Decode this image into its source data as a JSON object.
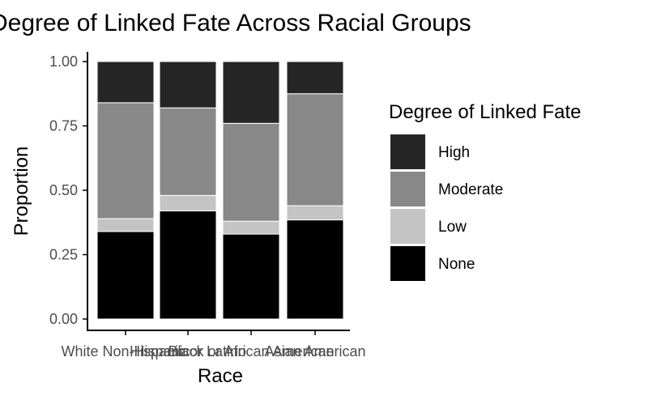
{
  "chart_data": {
    "type": "bar",
    "stacked": true,
    "title": "Degree of Linked Fate Across Racial Groups",
    "xlabel": "Race",
    "ylabel": "Proportion",
    "ylim": [
      0,
      1
    ],
    "yticks": [
      "0.00",
      "0.25",
      "0.50",
      "0.75",
      "1.00"
    ],
    "categories": [
      "White Non-Hispanic",
      "Hispanic or Latino",
      "Black or African American",
      "Asian American"
    ],
    "series": [
      {
        "name": "None",
        "color": "#000000",
        "values": [
          0.34,
          0.42,
          0.33,
          0.385
        ]
      },
      {
        "name": "Low",
        "color": "#c4c4c4",
        "values": [
          0.05,
          0.06,
          0.05,
          0.055
        ]
      },
      {
        "name": "Moderate",
        "color": "#888888",
        "values": [
          0.45,
          0.34,
          0.38,
          0.435
        ]
      },
      {
        "name": "High",
        "color": "#262626",
        "values": [
          0.16,
          0.18,
          0.24,
          0.125
        ]
      }
    ],
    "legend": {
      "title": "Degree of Linked Fate",
      "position": "right",
      "order": [
        "High",
        "Moderate",
        "Low",
        "None"
      ]
    },
    "grid": false
  }
}
